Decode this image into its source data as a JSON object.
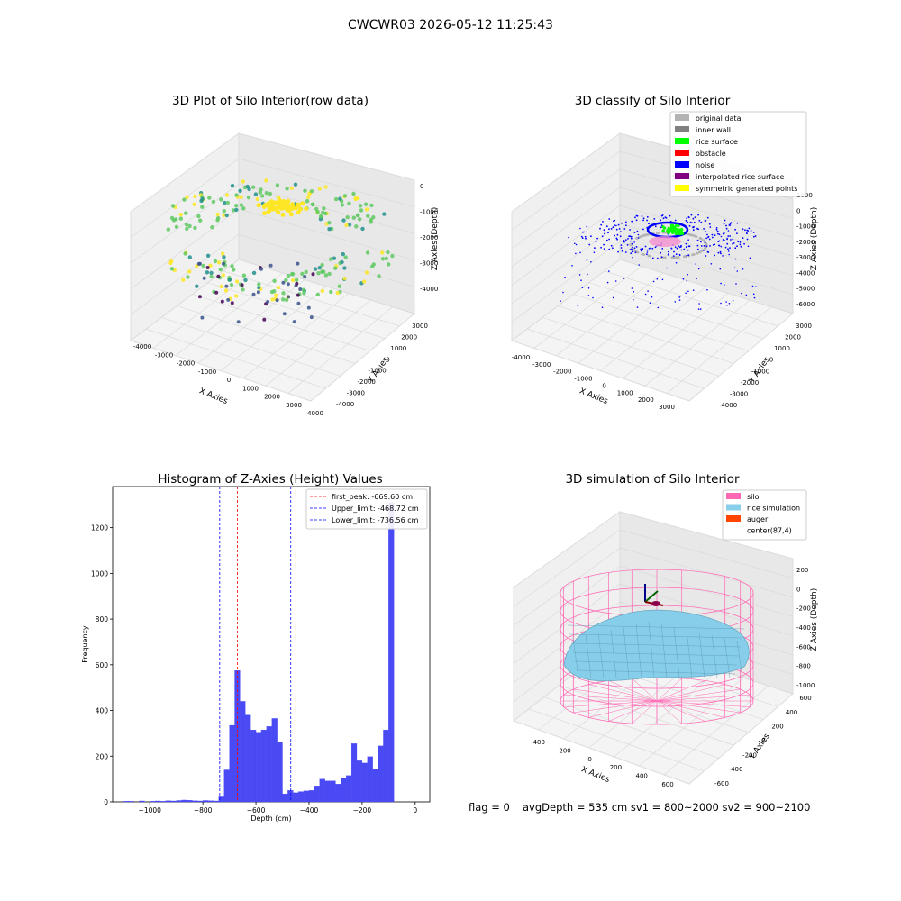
{
  "suptitle": "CWCWR03 2026-05-12 11:25:43",
  "footer": {
    "flag": "flag = 0",
    "summary": "avgDepth = 535 cm  sv1 = 800~2000  sv2 = 900~2100"
  },
  "chart_data": [
    {
      "type": "scatter",
      "title": "3D Plot of Silo Interior(row data)",
      "xlabel": "X Axies",
      "ylabel": "Y Axies",
      "zlabel": "Z Axies (Depth)",
      "x_ticks": [
        -4000,
        -3000,
        -2000,
        -1000,
        0,
        1000,
        2000,
        3000,
        4000
      ],
      "y_ticks": [
        -4000,
        -3000,
        -2000,
        -1000,
        0,
        1000,
        2000,
        3000
      ],
      "z_ticks": [
        -4000,
        -3000,
        -2000,
        -1000,
        0
      ],
      "colormap": [
        "#440154",
        "#3b528b",
        "#21918c",
        "#5ec962",
        "#fde725"
      ]
    },
    {
      "type": "scatter",
      "title": "3D classify of Silo Interior",
      "xlabel": "X Axies",
      "ylabel": "Y Axies",
      "zlabel": "Z Axies (Depth)",
      "x_ticks": [
        -4000,
        -3000,
        -2000,
        -1000,
        0,
        1000,
        2000,
        3000
      ],
      "y_ticks": [
        -4000,
        -3000,
        -2000,
        -1000,
        0,
        1000,
        2000,
        3000
      ],
      "z_ticks": [
        -6000,
        -5000,
        -4000,
        -3000,
        -2000,
        -1000,
        0,
        1000
      ],
      "legend_position": "top-right",
      "legend": [
        {
          "label": "original data",
          "color": "#b3b3b3"
        },
        {
          "label": "inner wall",
          "color": "#808080"
        },
        {
          "label": "rice surface",
          "color": "#00ff00"
        },
        {
          "label": "obstacle",
          "color": "#ff0000"
        },
        {
          "label": "noise",
          "color": "#0000ff"
        },
        {
          "label": "interpolated rice surface",
          "color": "#800080"
        },
        {
          "label": "symmetric generated points",
          "color": "#ffff00"
        }
      ]
    },
    {
      "type": "bar",
      "title": "Histogram of Z-Axies (Height) Values",
      "xlabel": "Depth (cm)",
      "ylabel": "Frequency",
      "xlim": [
        -1140,
        55
      ],
      "ylim": [
        0,
        1380
      ],
      "x_ticks": [
        -1000,
        -800,
        -600,
        -400,
        -200,
        0
      ],
      "y_ticks": [
        0,
        200,
        400,
        600,
        800,
        1000,
        1200
      ],
      "bin_width": 20,
      "bar_color": "#4a4af5",
      "bins_start": [
        -1100,
        -1080,
        -1060,
        -1040,
        -1020,
        -1000,
        -980,
        -960,
        -940,
        -920,
        -900,
        -880,
        -860,
        -840,
        -820,
        -800,
        -780,
        -760,
        -740,
        -720,
        -700,
        -680,
        -660,
        -640,
        -620,
        -600,
        -580,
        -560,
        -540,
        -520,
        -500,
        -480,
        -460,
        -440,
        -420,
        -400,
        -380,
        -360,
        -340,
        -320,
        -300,
        -280,
        -260,
        -240,
        -220,
        -200,
        -180,
        -160,
        -140,
        -120,
        -100,
        -80,
        -60,
        -40,
        -20
      ],
      "frequencies": [
        3,
        3,
        0,
        4,
        0,
        3,
        4,
        3,
        5,
        4,
        6,
        8,
        7,
        5,
        4,
        6,
        5,
        4,
        22,
        140,
        335,
        575,
        440,
        380,
        315,
        305,
        315,
        330,
        365,
        260,
        35,
        50,
        40,
        45,
        48,
        50,
        70,
        100,
        92,
        92,
        78,
        105,
        115,
        255,
        180,
        170,
        198,
        145,
        245,
        315,
        1310,
        0,
        0,
        0,
        0
      ],
      "vlines": [
        {
          "label": "first_peak: -669.60 cm",
          "x": -669.6,
          "color": "#ff0000"
        },
        {
          "label": "Upper_limit: -468.72 cm",
          "x": -468.72,
          "color": "#0000ff"
        },
        {
          "label": "Lower_limit: -736.56 cm",
          "x": -736.56,
          "color": "#0000ff"
        }
      ],
      "legend_position": "top-right"
    },
    {
      "type": "surface",
      "title": "3D simulation of Silo Interior",
      "xlabel": "X Axies",
      "ylabel": "Y Axies",
      "zlabel": "Z Axies (Depth)",
      "x_ticks": [
        -400,
        -200,
        0,
        200,
        400,
        600
      ],
      "y_ticks": [
        -600,
        -400,
        -200,
        0,
        200,
        400,
        600
      ],
      "z_ticks": [
        -1000,
        -800,
        -600,
        -400,
        -200,
        0,
        200
      ],
      "legend_position": "top-right",
      "legend": [
        {
          "label": "silo",
          "color": "#ff69b4"
        },
        {
          "label": "rice simulation",
          "color": "#87ceeb"
        },
        {
          "label": "auger",
          "color": "#ff4500"
        },
        {
          "label": "center(87,4)",
          "color": ""
        }
      ]
    }
  ]
}
